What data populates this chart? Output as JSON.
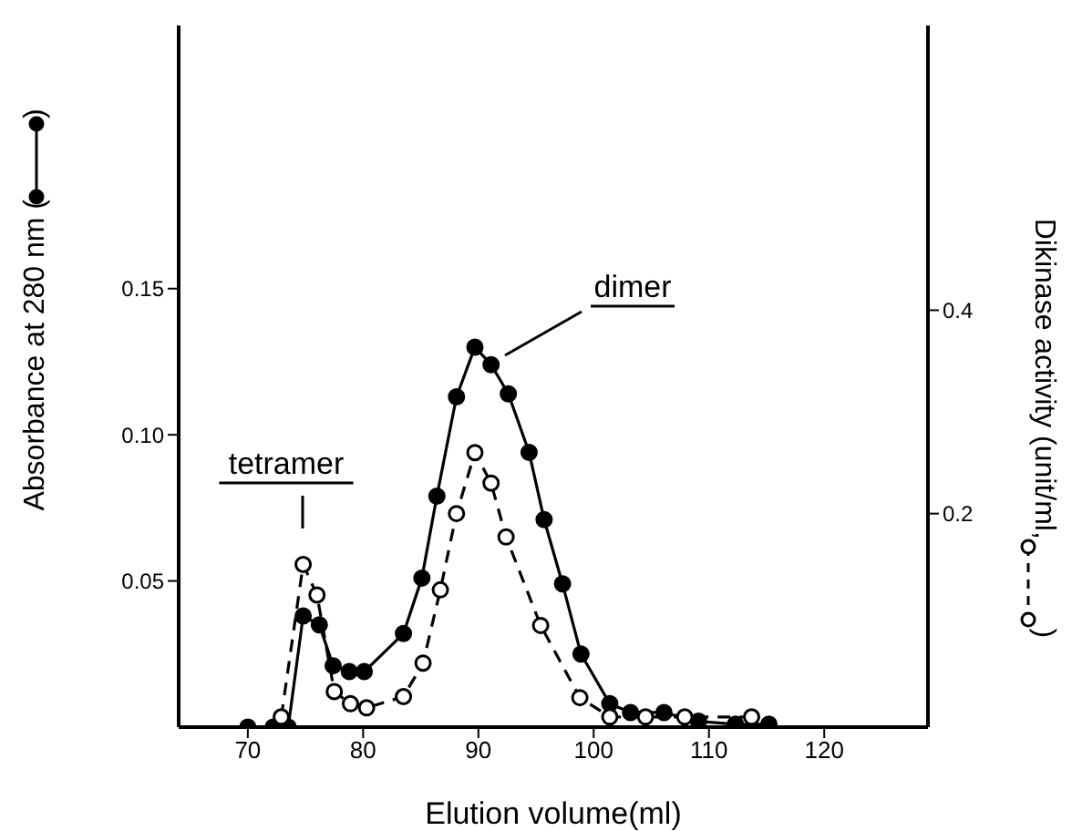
{
  "chart_data": {
    "type": "line",
    "xlabel": "Elution volume(ml)",
    "ylabel": "Absorbance at 280 nm (          )",
    "y2label": "Dikinase activity (unit/ml,           )",
    "xlim": [
      64,
      129
    ],
    "xticks": [
      70,
      80,
      90,
      100,
      110,
      120
    ],
    "ylim": [
      0,
      0.24
    ],
    "yticks": [
      {
        "value": 0.05,
        "label": "0.05"
      },
      {
        "value": 0.1,
        "label": "0.10"
      },
      {
        "value": 0.15,
        "label": "0.15"
      }
    ],
    "y2lim": [
      -0.01,
      0.68
    ],
    "y2ticks": [
      0.2,
      0.4
    ],
    "marker": "circle",
    "series": [
      {
        "color": "#000000",
        "line_style": "solid",
        "x": [
          70,
          72.2,
          73.5,
          74.8,
          76.2,
          77.4,
          78.8,
          80.1,
          83.5,
          85.1,
          86.4,
          88.1,
          89.7,
          91.1,
          92.6,
          94.4,
          95.7,
          97.3,
          98.9,
          101.4,
          103.2,
          106.1,
          109.1,
          112.3,
          115.2
        ],
        "values": [
          0,
          0,
          0,
          0.038,
          0.035,
          0.021,
          0.019,
          0.019,
          0.032,
          0.051,
          0.079,
          0.113,
          0.13,
          0.124,
          0.114,
          0.094,
          0.071,
          0.049,
          0.025,
          0.008,
          0.005,
          0.005,
          0.002,
          0.001,
          0.001
        ]
      },
      {
        "color": "#000000",
        "line_style": "dashed",
        "axis": "y2",
        "x": [
          72.9,
          74.8,
          76.0,
          77.5,
          78.9,
          80.3,
          83.5,
          85.2,
          86.7,
          88.1,
          89.7,
          91.1,
          92.4,
          95.4,
          98.8,
          101.4,
          104.5,
          107.9,
          113.7
        ],
        "values": [
          0,
          0.15,
          0.12,
          0.025,
          0.013,
          0.009,
          0.02,
          0.053,
          0.125,
          0.2,
          0.26,
          0.23,
          0.177,
          0.09,
          0.019,
          0,
          0,
          0,
          0
        ]
      }
    ],
    "annotations": [
      "tetramer",
      "dimer"
    ]
  }
}
